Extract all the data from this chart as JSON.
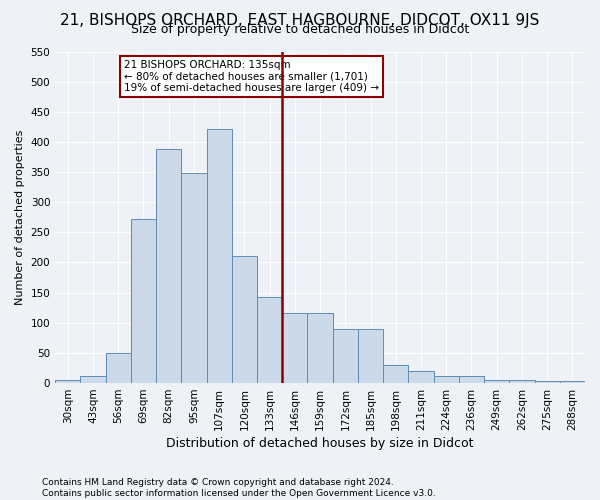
{
  "title": "21, BISHOPS ORCHARD, EAST HAGBOURNE, DIDCOT, OX11 9JS",
  "subtitle": "Size of property relative to detached houses in Didcot",
  "xlabel": "Distribution of detached houses by size in Didcot",
  "ylabel": "Number of detached properties",
  "footer_line1": "Contains HM Land Registry data © Crown copyright and database right 2024.",
  "footer_line2": "Contains public sector information licensed under the Open Government Licence v3.0.",
  "categories": [
    "30sqm",
    "43sqm",
    "56sqm",
    "69sqm",
    "82sqm",
    "95sqm",
    "107sqm",
    "120sqm",
    "133sqm",
    "146sqm",
    "159sqm",
    "172sqm",
    "185sqm",
    "198sqm",
    "211sqm",
    "224sqm",
    "236sqm",
    "249sqm",
    "262sqm",
    "275sqm",
    "288sqm"
  ],
  "values": [
    5,
    11,
    50,
    272,
    389,
    348,
    421,
    211,
    143,
    116,
    116,
    89,
    89,
    30,
    20,
    11,
    11,
    5,
    5,
    3,
    3
  ],
  "bar_color": "#ccd9e8",
  "bar_edge_color": "#5b8db8",
  "vline_x_index": 8,
  "vline_color": "#8b0000",
  "annotation_title": "21 BISHOPS ORCHARD: 135sqm",
  "annotation_line1": "← 80% of detached houses are smaller (1,701)",
  "annotation_line2": "19% of semi-detached houses are larger (409) →",
  "annotation_box_color": "#8b0000",
  "ylim": [
    0,
    550
  ],
  "yticks": [
    0,
    50,
    100,
    150,
    200,
    250,
    300,
    350,
    400,
    450,
    500,
    550
  ],
  "bg_color": "#eef2f7",
  "grid_color": "#ffffff",
  "title_fontsize": 11,
  "subtitle_fontsize": 9,
  "ylabel_fontsize": 8,
  "xlabel_fontsize": 9,
  "tick_fontsize": 7.5,
  "footer_fontsize": 6.5
}
